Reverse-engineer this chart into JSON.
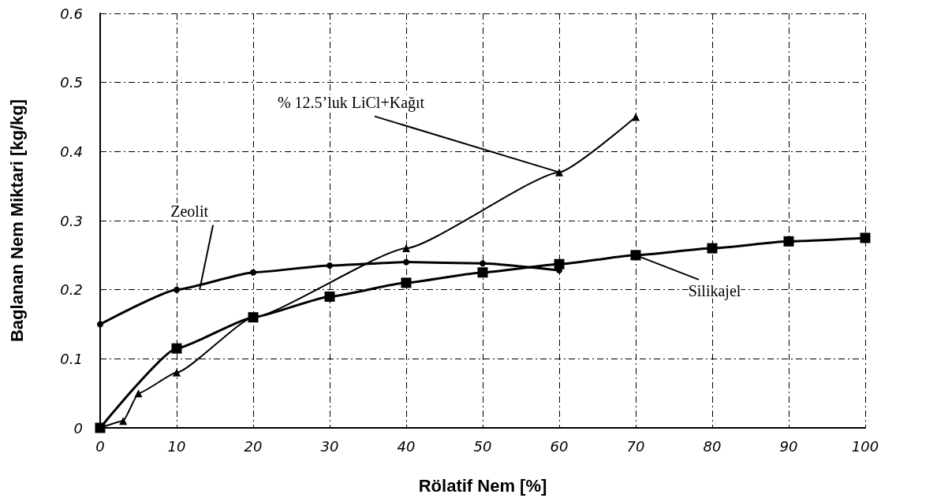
{
  "chart_data": {
    "type": "line",
    "xlabel": "Rölatif Nem [%]",
    "ylabel": "Baglanan Nem Miktari [kg/kg]",
    "xlim": [
      0,
      100
    ],
    "xticks": [
      0,
      10,
      20,
      30,
      40,
      50,
      60,
      70,
      80,
      90,
      100
    ],
    "ylim": [
      0,
      0.6
    ],
    "yticks": [
      0,
      0.1,
      0.2,
      0.3,
      0.4,
      0.5,
      0.6
    ],
    "grid": true,
    "series": [
      {
        "color": "#000000",
        "marker": "circle",
        "x": [
          0,
          10,
          20,
          30,
          40,
          50,
          60
        ],
        "values": [
          0.15,
          0.2,
          0.225,
          0.235,
          0.24,
          0.238,
          0.228
        ]
      },
      {
        "color": "#000000",
        "marker": "square",
        "x": [
          0,
          10,
          20,
          30,
          40,
          50,
          60,
          70,
          80,
          90,
          100
        ],
        "values": [
          0,
          0.115,
          0.16,
          0.19,
          0.21,
          0.225,
          0.237,
          0.25,
          0.26,
          0.27,
          0.275
        ]
      },
      {
        "color": "#000000",
        "marker": "triangle",
        "x": [
          0,
          3,
          5,
          10,
          20,
          40,
          60,
          70
        ],
        "values": [
          0,
          0.01,
          0.05,
          0.08,
          0.16,
          0.26,
          0.37,
          0.45
        ]
      }
    ],
    "annotations": [
      {
        "text": "Zeolit",
        "x": 13,
        "y": 0.2
      },
      {
        "text": "% 12.5’luk LiCl+Kağıt",
        "x": 60,
        "y": 0.37
      },
      {
        "text": "Silikajel",
        "x": 70,
        "y": 0.25
      }
    ]
  }
}
